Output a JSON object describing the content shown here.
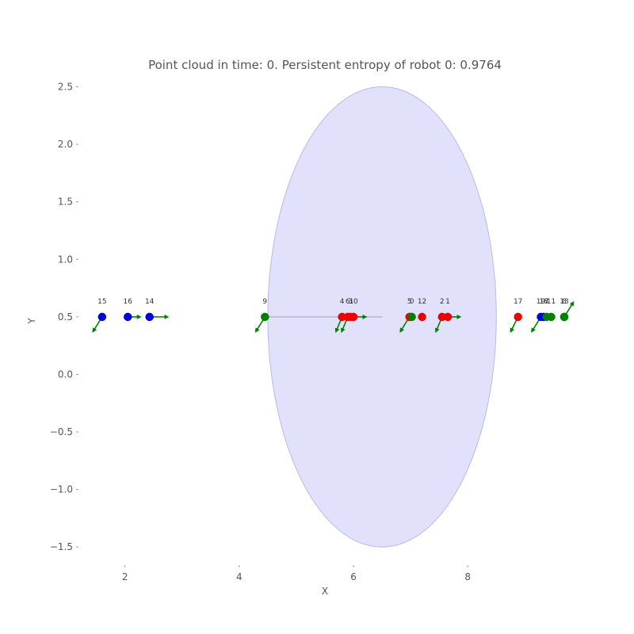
{
  "chart_data": {
    "type": "scatter",
    "title": "Point cloud in time: 0. Persistent entropy of robot 0: 0.9764",
    "xlabel": "X",
    "ylabel": "Y",
    "xlim": [
      1.2,
      9.8
    ],
    "ylim": [
      -1.65,
      2.6
    ],
    "xticks": [
      2,
      4,
      6,
      8
    ],
    "xtick_labels": [
      "2",
      "4",
      "6",
      "8"
    ],
    "yticks": [
      -1.5,
      -1.0,
      -0.5,
      0.0,
      0.5,
      1.0,
      1.5,
      2.0,
      2.5
    ],
    "ytick_labels": [
      "−1.5",
      "−1.0",
      "−0.5",
      "0.0",
      "0.5",
      "1.0",
      "1.5",
      "2.0",
      "2.5"
    ],
    "grid": false,
    "ellipse": {
      "cx": 6.5,
      "cy": 0.5,
      "rx": 2.0,
      "ry": 2.0,
      "color": "#c8c8f8"
    },
    "line_segments": [
      {
        "x": [
          4.5,
          6.5
        ],
        "y": [
          0.5,
          0.5
        ],
        "color": "#aaaacc"
      }
    ],
    "colors": {
      "blue": "#0000dd",
      "red": "#ee0000",
      "green": "#008000"
    },
    "points": [
      {
        "label": "15",
        "x": 1.6,
        "y": 0.5,
        "color": "blue",
        "dx": -0.15,
        "dy": -0.12
      },
      {
        "label": "16",
        "x": 2.05,
        "y": 0.5,
        "color": "blue",
        "dx": 0.2,
        "dy": 0.0
      },
      {
        "label": "14",
        "x": 2.43,
        "y": 0.5,
        "color": "blue",
        "dx": 0.3,
        "dy": 0.0
      },
      {
        "label": "9",
        "x": 4.45,
        "y": 0.5,
        "color": "green",
        "dx": -0.15,
        "dy": -0.12
      },
      {
        "label": "4",
        "x": 5.8,
        "y": 0.5,
        "color": "red",
        "dx": -0.1,
        "dy": -0.12
      },
      {
        "label": "6",
        "x": 5.9,
        "y": 0.5,
        "color": "red",
        "dx": -0.1,
        "dy": -0.12
      },
      {
        "label": "3",
        "x": 5.95,
        "y": 0.5,
        "color": "red",
        "dx": 0.0,
        "dy": 0.0
      },
      {
        "label": "10",
        "x": 6.0,
        "y": 0.5,
        "color": "red",
        "dx": 0.2,
        "dy": 0.0
      },
      {
        "label": "5",
        "x": 6.98,
        "y": 0.5,
        "color": "red",
        "dx": -0.15,
        "dy": -0.12
      },
      {
        "label": "0",
        "x": 7.02,
        "y": 0.5,
        "color": "green",
        "dx": 0.0,
        "dy": 0.0
      },
      {
        "label": "12",
        "x": 7.2,
        "y": 0.5,
        "color": "red",
        "dx": 0.0,
        "dy": 0.0
      },
      {
        "label": "2",
        "x": 7.55,
        "y": 0.5,
        "color": "red",
        "dx": -0.1,
        "dy": -0.12
      },
      {
        "label": "1",
        "x": 7.65,
        "y": 0.5,
        "color": "red",
        "dx": 0.2,
        "dy": 0.0
      },
      {
        "label": "17",
        "x": 8.88,
        "y": 0.5,
        "color": "red",
        "dx": -0.12,
        "dy": -0.12
      },
      {
        "label": "19",
        "x": 9.28,
        "y": 0.5,
        "color": "blue",
        "dx": -0.15,
        "dy": -0.12
      },
      {
        "label": "18",
        "x": 9.33,
        "y": 0.5,
        "color": "blue",
        "dx": 0.0,
        "dy": 0.0
      },
      {
        "label": "7",
        "x": 9.38,
        "y": 0.5,
        "color": "green",
        "dx": 0.0,
        "dy": 0.0
      },
      {
        "label": "11",
        "x": 9.46,
        "y": 0.5,
        "color": "green",
        "dx": 0.0,
        "dy": 0.0
      },
      {
        "label": "13",
        "x": 9.8,
        "y": 0.5,
        "color": "green",
        "dx": 0.0,
        "dy": 0.0
      },
      {
        "label": "8",
        "x": 10.05,
        "y": 0.5,
        "color": "green",
        "dx": 0.15,
        "dy": 0.12
      }
    ]
  }
}
